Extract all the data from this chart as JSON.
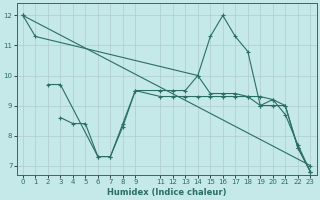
{
  "xlabel": "Humidex (Indice chaleur)",
  "background_color": "#c5e8e8",
  "grid_color": "#b0cccc",
  "line_color": "#2a6e65",
  "x_ticks": [
    0,
    1,
    2,
    3,
    4,
    5,
    6,
    7,
    8,
    9,
    11,
    12,
    13,
    14,
    15,
    16,
    17,
    18,
    19,
    20,
    21,
    22,
    23
  ],
  "ylim": [
    6.7,
    12.4
  ],
  "xlim": [
    -0.5,
    23.5
  ],
  "series": [
    {
      "x": [
        0,
        1,
        14,
        15,
        16,
        17,
        18,
        19,
        20,
        21,
        22,
        23
      ],
      "y": [
        12.0,
        11.3,
        10.0,
        11.3,
        12.0,
        11.3,
        10.8,
        9.0,
        9.2,
        8.7,
        7.7,
        6.8
      ]
    },
    {
      "x": [
        2,
        3,
        6,
        7,
        8,
        9,
        11,
        12,
        13,
        14,
        15,
        16,
        17,
        18,
        19,
        20,
        21,
        22,
        23
      ],
      "y": [
        9.7,
        9.7,
        7.3,
        7.3,
        8.3,
        9.5,
        9.5,
        9.5,
        9.5,
        10.0,
        9.4,
        9.4,
        9.4,
        9.3,
        9.3,
        9.2,
        9.0,
        7.6,
        6.8
      ]
    },
    {
      "x": [
        3,
        4,
        5,
        6,
        7,
        8,
        9,
        11,
        12,
        13,
        14,
        15,
        16,
        17,
        18,
        19,
        20,
        21,
        22,
        23
      ],
      "y": [
        8.6,
        8.4,
        8.4,
        7.3,
        7.3,
        8.4,
        9.5,
        9.3,
        9.3,
        9.3,
        9.3,
        9.3,
        9.3,
        9.3,
        9.3,
        9.0,
        9.0,
        9.0,
        7.6,
        6.8
      ]
    },
    {
      "x": [
        0,
        23
      ],
      "y": [
        12.0,
        7.0
      ]
    }
  ]
}
